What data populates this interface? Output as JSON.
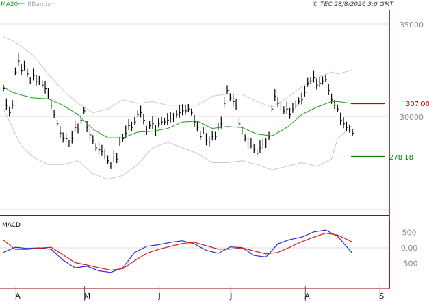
{
  "header": {
    "legend_ma": "MA20",
    "legend_bb": "BBands",
    "copyright": "© TEC 28/8/2026 3:0 GMT"
  },
  "colors": {
    "price": "#000000",
    "ma": "#1a9e1a",
    "bbands": "#c8c8c8",
    "macd": "#1f2fe0",
    "signal": "#d21a1a",
    "resistance": "#c00000",
    "support": "#008000",
    "grid": "#dcdcdc",
    "axis": "#8b0000",
    "text": "#8c8c8c"
  },
  "chart_data": [
    {
      "type": "line",
      "panel": "price",
      "y_ticks": [
        "35000",
        "30000"
      ],
      "y_tick_values": [
        35000,
        30000
      ],
      "ylim": [
        25000,
        36000
      ],
      "x_labels": [
        "A",
        "M",
        "J",
        "J",
        "A",
        "S"
      ],
      "x_range": [
        0,
        136
      ],
      "x_label_positions": [
        1,
        24,
        49,
        73,
        98,
        123
      ],
      "levels": [
        {
          "name": "resistance",
          "value": 30700,
          "label": "307 00",
          "color": "#c00000"
        },
        {
          "name": "support",
          "value": 27818,
          "label": "278 18",
          "color": "#008000"
        }
      ],
      "price_bars": [
        [
          0,
          31500
        ],
        [
          1,
          30600
        ],
        [
          2,
          30200
        ],
        [
          3,
          30600
        ],
        [
          4,
          32400
        ],
        [
          5,
          33000
        ],
        [
          6,
          32500
        ],
        [
          7,
          32700
        ],
        [
          8,
          32300
        ],
        [
          9,
          31900
        ],
        [
          10,
          32200
        ],
        [
          11,
          31900
        ],
        [
          12,
          31900
        ],
        [
          13,
          31700
        ],
        [
          14,
          31500
        ],
        [
          15,
          31200
        ],
        [
          16,
          30600
        ],
        [
          17,
          30100
        ],
        [
          18,
          29600
        ],
        [
          19,
          29100
        ],
        [
          20,
          28800
        ],
        [
          21,
          28800
        ],
        [
          22,
          28500
        ],
        [
          23,
          28800
        ],
        [
          24,
          29400
        ],
        [
          25,
          29300
        ],
        [
          26,
          29800
        ],
        [
          27,
          30300
        ],
        [
          28,
          29400
        ],
        [
          29,
          29000
        ],
        [
          30,
          28700
        ],
        [
          31,
          28300
        ],
        [
          32,
          28200
        ],
        [
          33,
          28100
        ],
        [
          34,
          27900
        ],
        [
          35,
          27600
        ],
        [
          36,
          27300
        ],
        [
          37,
          27800
        ],
        [
          38,
          27700
        ],
        [
          39,
          28600
        ],
        [
          40,
          28800
        ],
        [
          41,
          29100
        ],
        [
          42,
          29500
        ],
        [
          43,
          29400
        ],
        [
          44,
          29700
        ],
        [
          45,
          30100
        ],
        [
          46,
          30200
        ],
        [
          47,
          29800
        ],
        [
          48,
          29200
        ],
        [
          49,
          29500
        ],
        [
          50,
          29600
        ],
        [
          51,
          29200
        ],
        [
          52,
          29600
        ],
        [
          53,
          29700
        ],
        [
          54,
          29700
        ],
        [
          55,
          29800
        ],
        [
          56,
          29900
        ],
        [
          57,
          29900
        ],
        [
          58,
          30100
        ],
        [
          59,
          30200
        ],
        [
          60,
          30300
        ],
        [
          61,
          30300
        ],
        [
          62,
          30400
        ],
        [
          63,
          30200
        ],
        [
          64,
          29700
        ],
        [
          65,
          29400
        ],
        [
          66,
          28900
        ],
        [
          67,
          29200
        ],
        [
          68,
          28700
        ],
        [
          69,
          28600
        ],
        [
          70,
          28900
        ],
        [
          71,
          28900
        ],
        [
          72,
          29400
        ],
        [
          73,
          29600
        ],
        [
          74,
          30700
        ],
        [
          75,
          31400
        ],
        [
          76,
          31000
        ],
        [
          77,
          30800
        ],
        [
          78,
          30600
        ],
        [
          79,
          29600
        ],
        [
          80,
          29200
        ],
        [
          81,
          28800
        ],
        [
          82,
          28500
        ],
        [
          83,
          28500
        ],
        [
          84,
          28200
        ],
        [
          85,
          28000
        ],
        [
          86,
          28300
        ],
        [
          87,
          28500
        ],
        [
          88,
          28500
        ],
        [
          89,
          28900
        ],
        [
          90,
          30400
        ],
        [
          91,
          31100
        ],
        [
          92,
          30700
        ],
        [
          93,
          30500
        ],
        [
          94,
          30300
        ],
        [
          95,
          30400
        ],
        [
          96,
          30100
        ],
        [
          97,
          30400
        ],
        [
          98,
          30600
        ],
        [
          99,
          30800
        ],
        [
          100,
          30900
        ],
        [
          101,
          31300
        ],
        [
          102,
          31800
        ],
        [
          103,
          31900
        ],
        [
          104,
          32100
        ],
        [
          105,
          31700
        ],
        [
          106,
          31800
        ],
        [
          107,
          31900
        ],
        [
          108,
          32000
        ],
        [
          109,
          31400
        ],
        [
          110,
          30900
        ],
        [
          111,
          30600
        ],
        [
          112,
          30400
        ],
        [
          113,
          29800
        ],
        [
          114,
          29600
        ],
        [
          115,
          29400
        ],
        [
          116,
          29300
        ],
        [
          117,
          29100
        ]
      ],
      "series": [
        {
          "name": "MA20",
          "color": "#1a9e1a",
          "x": [
            0,
            3,
            6,
            10,
            15,
            20,
            25,
            30,
            35,
            40,
            45,
            50,
            55,
            60,
            65,
            70,
            75,
            80,
            85,
            90,
            95,
            100,
            105,
            110,
            112,
            117
          ],
          "y": [
            31600,
            31300,
            31150,
            31000,
            30950,
            30600,
            30100,
            29300,
            28850,
            28850,
            29150,
            29200,
            29350,
            29700,
            29750,
            29350,
            29450,
            29400,
            29050,
            28950,
            29400,
            30100,
            30500,
            30800,
            30800,
            30700
          ]
        },
        {
          "name": "BBands",
          "color": "#c8c8c8",
          "x": [
            0,
            3,
            6,
            10,
            15,
            20,
            25,
            30,
            35,
            40,
            45,
            50,
            55,
            60,
            65,
            70,
            75,
            80,
            85,
            90,
            95,
            100,
            105,
            110,
            112,
            117
          ],
          "y": [
            34300,
            34100,
            33800,
            33300,
            32300,
            31400,
            30700,
            30200,
            30400,
            30900,
            30700,
            30800,
            30600,
            30600,
            30600,
            31100,
            31200,
            31200,
            30800,
            30500,
            31000,
            31600,
            32100,
            32400,
            32300,
            32500
          ]
        },
        {
          "name": "BBands",
          "color": "#c8c8c8",
          "x": [
            0,
            3,
            6,
            10,
            15,
            20,
            25,
            30,
            35,
            40,
            45,
            50,
            55,
            60,
            65,
            70,
            75,
            80,
            85,
            90,
            95,
            100,
            105,
            110,
            112,
            117
          ],
          "y": [
            30400,
            29400,
            28400,
            27800,
            27400,
            27400,
            27600,
            26900,
            26600,
            26800,
            27400,
            28300,
            28600,
            28300,
            28000,
            27500,
            27500,
            27600,
            27400,
            27100,
            27300,
            27500,
            27300,
            27700,
            28800,
            29500
          ]
        }
      ]
    },
    {
      "type": "line",
      "panel": "MACD",
      "title": "MACD",
      "y_ticks": [
        "500",
        "0.00",
        "-500"
      ],
      "y_tick_values": [
        500,
        0,
        -500
      ],
      "ylim": [
        -1050,
        800
      ],
      "series": [
        {
          "name": "MACD",
          "color": "#1f2fe0",
          "x": [
            0,
            4,
            8,
            12,
            16,
            20,
            24,
            28,
            32,
            36,
            40,
            44,
            48,
            52,
            56,
            60,
            64,
            68,
            72,
            76,
            80,
            84,
            88,
            92,
            96,
            100,
            104,
            108,
            112,
            117
          ],
          "y": [
            -150,
            20,
            -20,
            0,
            -50,
            -400,
            -650,
            -600,
            -750,
            -800,
            -650,
            -150,
            50,
            100,
            180,
            230,
            130,
            -80,
            -180,
            30,
            10,
            -250,
            -300,
            130,
            270,
            350,
            520,
            580,
            380,
            -180
          ]
        },
        {
          "name": "Signal",
          "color": "#d21a1a",
          "x": [
            0,
            4,
            8,
            12,
            16,
            20,
            24,
            28,
            32,
            36,
            40,
            44,
            48,
            52,
            56,
            60,
            64,
            68,
            72,
            76,
            80,
            84,
            88,
            92,
            96,
            100,
            104,
            108,
            112,
            117
          ],
          "y": [
            250,
            -50,
            -50,
            -10,
            20,
            -230,
            -480,
            -560,
            -650,
            -730,
            -680,
            -420,
            -180,
            -50,
            50,
            140,
            180,
            70,
            -40,
            -40,
            0,
            -100,
            -200,
            -150,
            20,
            200,
            350,
            480,
            420,
            190
          ]
        }
      ]
    }
  ]
}
